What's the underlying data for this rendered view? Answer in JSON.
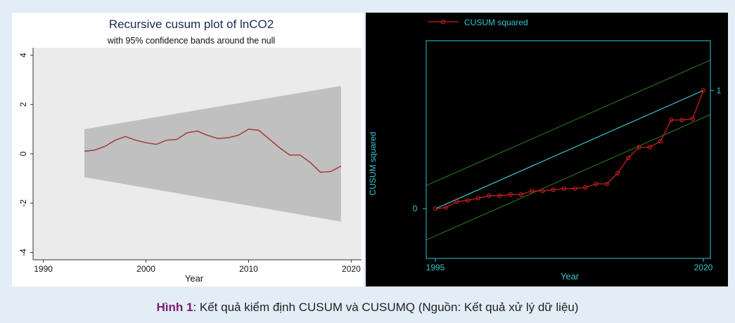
{
  "caption": {
    "label": "Hình 1",
    "text": ": Kết quả kiểm định CUSUM và CUSUMQ (Nguồn: Kết quả xử lý dữ liệu)"
  },
  "colors": {
    "band": "#c0c0c0",
    "cusum_line": "#a43a3a",
    "cusumsq_line": "#c81e1e",
    "reference_line": "#3fc8d8",
    "bound_line": "#2e7d1e",
    "axis_cyan": "#32c6d6"
  },
  "chart_data": [
    {
      "type": "area",
      "title": "Recursive cusum plot of lnCO2",
      "subtitle": "with 95% confidence bands around the null",
      "xlabel": "Year",
      "ylabel": "",
      "xlim": [
        1989,
        2021
      ],
      "ylim": [
        -4.3,
        4.3
      ],
      "xticks": [
        1990,
        2000,
        2010,
        2020
      ],
      "yticks": [
        4,
        2,
        0,
        -2,
        -4
      ],
      "ytick_labels": [
        "4",
        "2",
        "0",
        "-2",
        "-4"
      ],
      "band": {
        "name": "95% confidence band",
        "x": [
          1994,
          2019
        ],
        "upper": [
          1.0,
          2.75
        ],
        "lower": [
          -0.95,
          -2.75
        ]
      },
      "series": [
        {
          "name": "recursive cusum",
          "x": [
            1994,
            1995,
            1996,
            1997,
            1998,
            1999,
            2000,
            2001,
            2002,
            2003,
            2004,
            2005,
            2006,
            2007,
            2008,
            2009,
            2010,
            2011,
            2012,
            2013,
            2014,
            2015,
            2016,
            2017,
            2018,
            2019
          ],
          "y": [
            0.1,
            0.15,
            0.3,
            0.55,
            0.7,
            0.55,
            0.45,
            0.38,
            0.55,
            0.58,
            0.85,
            0.92,
            0.75,
            0.62,
            0.65,
            0.75,
            1.0,
            0.95,
            0.6,
            0.25,
            -0.05,
            -0.05,
            -0.35,
            -0.75,
            -0.72,
            -0.5
          ]
        }
      ]
    },
    {
      "type": "line",
      "title": "",
      "legend": [
        "CUSUM squared"
      ],
      "legend_position": "top-left",
      "xlabel": "Year",
      "ylabel": "CUSUM squared",
      "xlim": [
        1995,
        2020
      ],
      "ylim": [
        -0.42,
        1.42
      ],
      "xticks": [
        1995,
        2020
      ],
      "yticks": [
        0,
        1
      ],
      "series": [
        {
          "name": "CUSUM squared",
          "x": [
            1995,
            1996,
            1997,
            1998,
            1999,
            2000,
            2001,
            2002,
            2003,
            2004,
            2005,
            2006,
            2007,
            2008,
            2009,
            2010,
            2011,
            2012,
            2013,
            2014,
            2015,
            2016,
            2017,
            2018,
            2019,
            2020
          ],
          "y": [
            0.0,
            0.01,
            0.06,
            0.07,
            0.09,
            0.11,
            0.11,
            0.12,
            0.12,
            0.15,
            0.15,
            0.16,
            0.17,
            0.17,
            0.18,
            0.21,
            0.21,
            0.3,
            0.43,
            0.52,
            0.52,
            0.57,
            0.75,
            0.75,
            0.76,
            1.0
          ]
        },
        {
          "name": "expected",
          "x": [
            1995,
            2020
          ],
          "y": [
            0.0,
            1.0
          ]
        },
        {
          "name": "upper bound",
          "x": [
            1995,
            2020
          ],
          "y": [
            0.23,
            1.23
          ]
        },
        {
          "name": "lower bound",
          "x": [
            1995,
            2020
          ],
          "y": [
            -0.23,
            0.77
          ]
        }
      ]
    }
  ]
}
